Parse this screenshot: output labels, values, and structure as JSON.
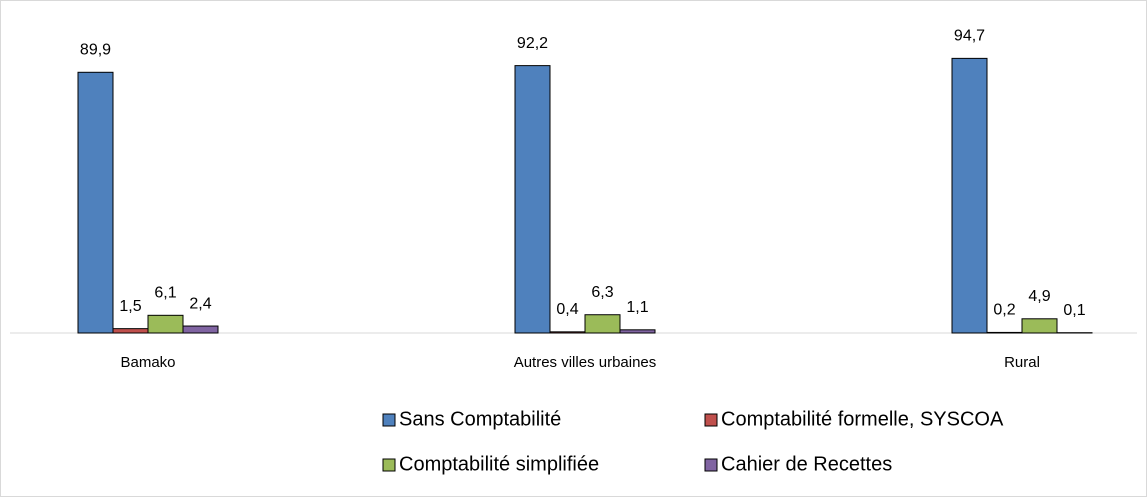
{
  "chart_data": {
    "type": "bar",
    "categories": [
      "Bamako",
      "Autres villes urbaines",
      "Rural"
    ],
    "series": [
      {
        "name": "Sans Comptabilité",
        "color": "#4f81bd",
        "values": [
          89.9,
          92.2,
          94.7
        ],
        "value_labels": [
          "89,9",
          "92,2",
          "94,7"
        ]
      },
      {
        "name": "Comptabilité formelle, SYSCOA",
        "color": "#c0504d",
        "values": [
          1.5,
          0.4,
          0.2
        ],
        "value_labels": [
          "1,5",
          "0,4",
          "0,2"
        ]
      },
      {
        "name": "Comptabilité simplifiée",
        "color": "#9bbb59",
        "values": [
          6.1,
          6.3,
          4.9
        ],
        "value_labels": [
          "6,1",
          "6,3",
          "4,9"
        ]
      },
      {
        "name": "Cahier de Recettes",
        "color": "#8064a2",
        "values": [
          2.4,
          1.1,
          0.1
        ],
        "value_labels": [
          "2,4",
          "1,1",
          "0,1"
        ]
      }
    ],
    "ylim": [
      0,
      100
    ]
  }
}
